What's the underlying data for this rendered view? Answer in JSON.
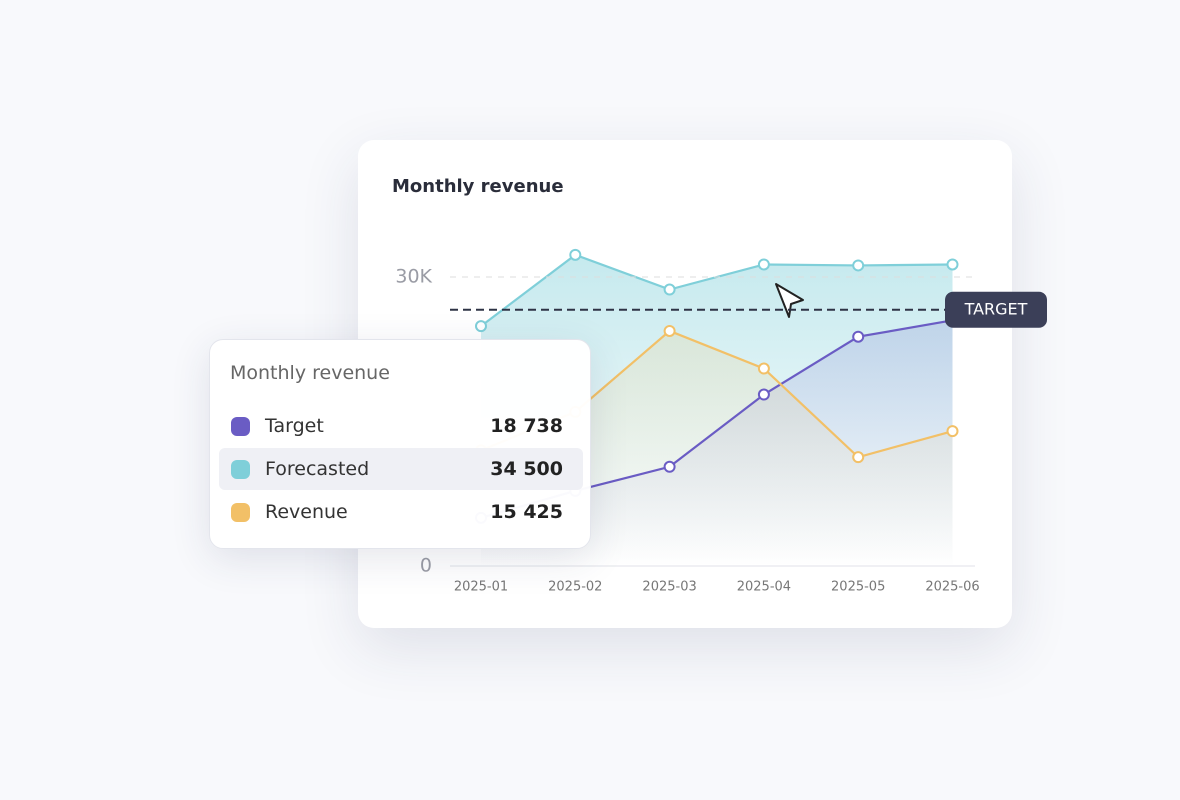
{
  "chart_data": {
    "type": "line",
    "title": "Monthly revenue",
    "categories": [
      "2025-01",
      "2025-02",
      "2025-03",
      "2025-04",
      "2025-05",
      "2025-06"
    ],
    "series": [
      {
        "name": "Target",
        "color": "#6a5cc4",
        "values": [
          5000,
          7800,
          10300,
          17800,
          23800,
          25500
        ]
      },
      {
        "name": "Forecasted",
        "color": "#7fcfd9",
        "values": [
          24900,
          32300,
          28700,
          31300,
          31200,
          31300
        ]
      },
      {
        "name": "Revenue",
        "color": "#f2c067",
        "values": [
          12000,
          16000,
          24400,
          20500,
          11300,
          14000
        ]
      }
    ],
    "ylim": [
      0,
      30000
    ],
    "yticks": [
      0,
      {
        "value": 30000,
        "label": "30K"
      }
    ],
    "grid": true,
    "target_line": {
      "value": 26600,
      "label": "TARGET"
    },
    "tooltip": {
      "title": "Monthly revenue",
      "values": [
        "18 738",
        "34 500",
        "15 425"
      ],
      "highlighted": 1
    }
  }
}
